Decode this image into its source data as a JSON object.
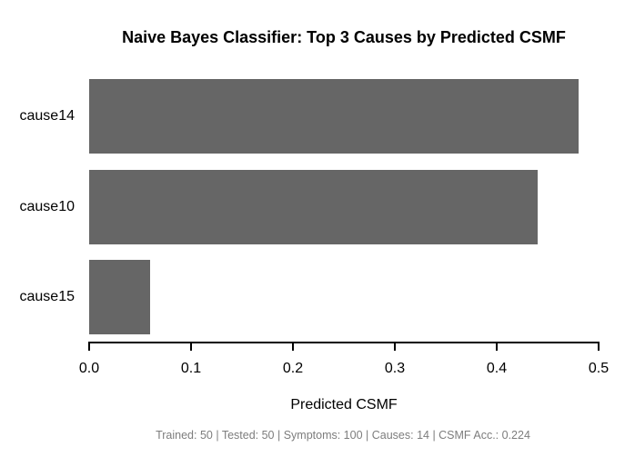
{
  "title": "Naive Bayes Classifier: Top 3 Causes by Predicted CSMF",
  "footer": "Trained: 50 | Tested: 50 | Symptoms: 100 | Causes: 14 | CSMF Acc.: 0.224",
  "chart_data": {
    "type": "bar",
    "orientation": "horizontal",
    "title": "Naive Bayes Classifier: Top 3 Causes by Predicted CSMF",
    "categories": [
      "cause14",
      "cause10",
      "cause15"
    ],
    "values": [
      0.48,
      0.44,
      0.06
    ],
    "xlabel": "Predicted CSMF",
    "ylabel": "",
    "xlim": [
      0.0,
      0.5
    ],
    "xticks": [
      0.0,
      0.1,
      0.2,
      0.3,
      0.4,
      0.5
    ],
    "xtick_labels": [
      "0.0",
      "0.1",
      "0.2",
      "0.3",
      "0.4",
      "0.5"
    ],
    "grid": false,
    "legend": "none",
    "annotation": "Trained: 50 | Tested: 50 | Symptoms: 100 | Causes: 14 | CSMF Acc.: 0.224"
  },
  "colors": {
    "bar": "#666666",
    "axis": "#000000",
    "title_text": "#000000",
    "footer_text": "#7d7d7d",
    "background": "#ffffff"
  }
}
